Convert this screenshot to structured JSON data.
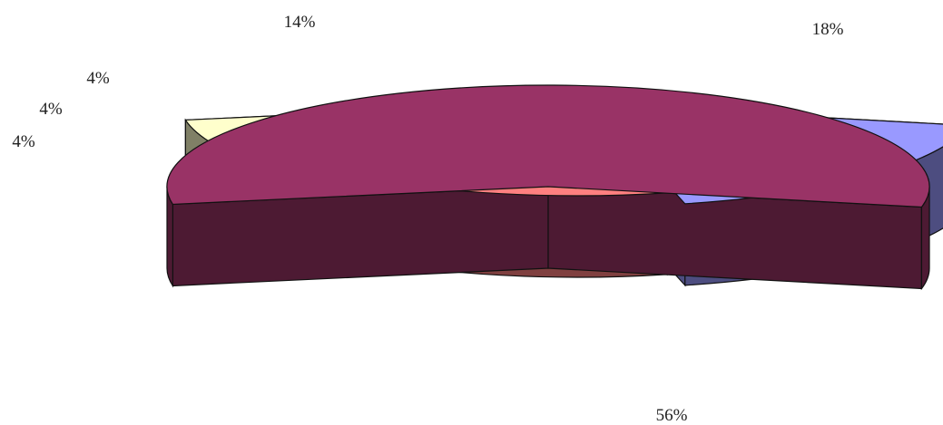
{
  "chart_data": {
    "type": "pie",
    "style": "3d-exploded",
    "slices": [
      {
        "value": 56,
        "label": "56%",
        "top": "#993366",
        "side": "#4d1a33"
      },
      {
        "value": 18,
        "label": "18%",
        "top": "#9999ff",
        "side": "#4d4d80"
      },
      {
        "value": 14,
        "label": "14%",
        "top": "#ff8080",
        "side": "#804040"
      },
      {
        "value": 4,
        "label": "4%",
        "top": "#660066",
        "side": "#330033"
      },
      {
        "value": 4,
        "label": "4%",
        "top": "#ccffff",
        "side": "#668080"
      },
      {
        "value": 4,
        "label": "4%",
        "top": "#ffffcc",
        "side": "#808066"
      }
    ]
  }
}
